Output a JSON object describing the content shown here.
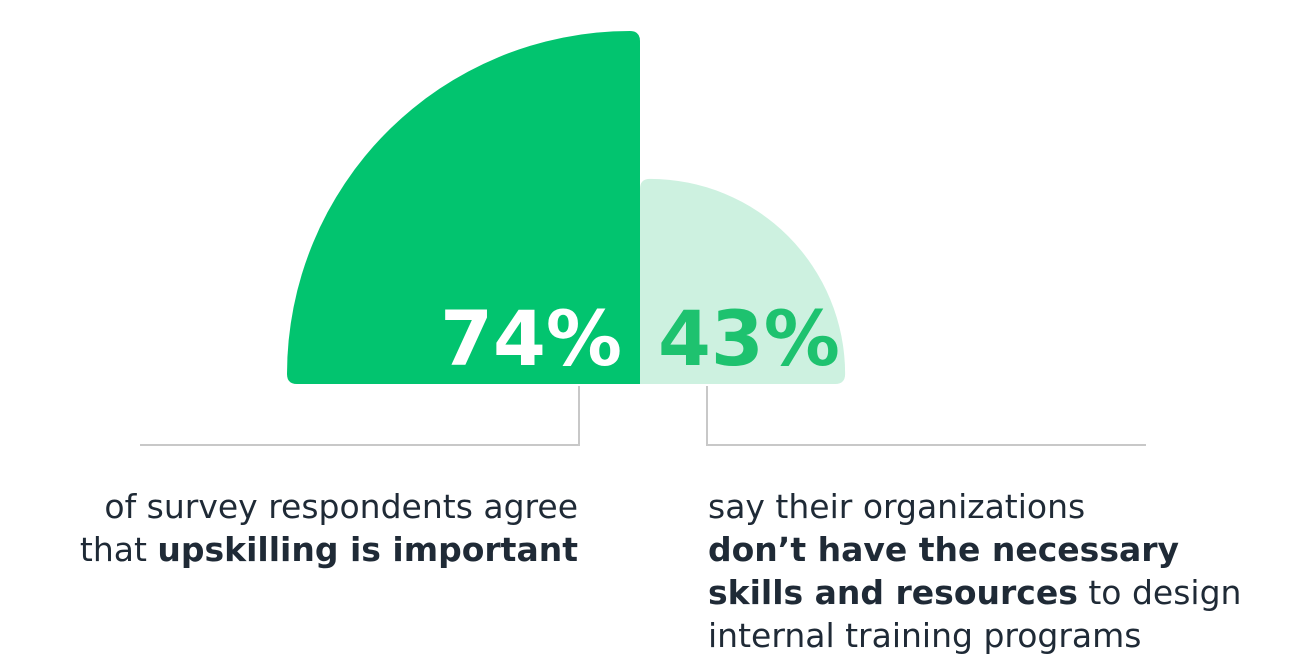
{
  "chart_data": {
    "type": "pie",
    "subtype": "half-radial-comparison",
    "series": [
      {
        "value": 74,
        "label": "74%",
        "color": "#02c46f",
        "label_color": "#ffffff",
        "caption": {
          "line1": "of survey respondents agree",
          "line2_pre": "that ",
          "line2_bold": "upskilling is important"
        }
      },
      {
        "value": 43,
        "label": "43%",
        "color": "#cdf1e0",
        "label_color": "#1ec26f",
        "caption": {
          "line1": "say their organizations",
          "line2_bold": "don’t have the necessary",
          "line3_bold": "skills and resources",
          "line3_post": " to design",
          "line4": "internal training programs"
        }
      }
    ],
    "connector_color": "#c8c8c8"
  }
}
